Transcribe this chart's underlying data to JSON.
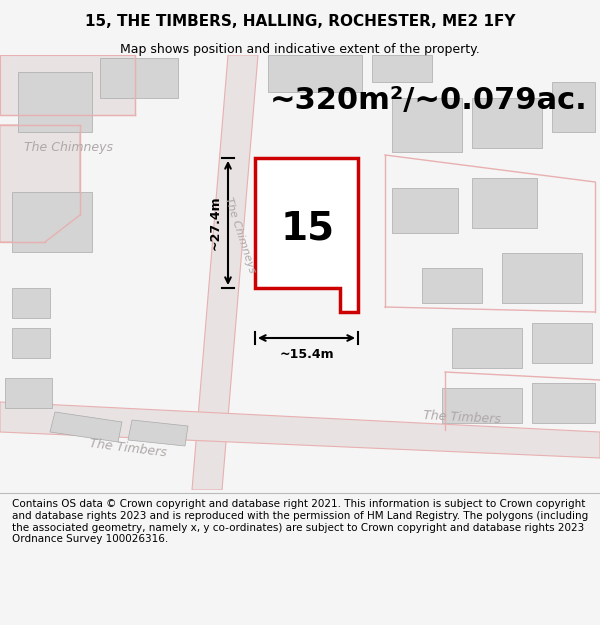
{
  "title": "15, THE TIMBERS, HALLING, ROCHESTER, ME2 1FY",
  "subtitle": "Map shows position and indicative extent of the property.",
  "area_text": "~320m²/~0.079ac.",
  "number_label": "15",
  "dim_width": "~15.4m",
  "dim_height": "~27.4m",
  "road_label_chimneys_main": "The Chimneys",
  "road_label_chimneys_ul": "The Chimneys",
  "road_label_timbers_br": "The Timbers",
  "road_label_timbers_bl": "The Timbers",
  "footer": "Contains OS data © Crown copyright and database right 2021. This information is subject to Crown copyright and database rights 2023 and is reproduced with the permission of HM Land Registry. The polygons (including the associated geometry, namely x, y co-ordinates) are subject to Crown copyright and database rights 2023 Ordnance Survey 100026316.",
  "bg_color": "#f5f5f5",
  "map_bg": "#ede9e9",
  "plot_color": "#ffffff",
  "plot_edge_color": "#cc0000",
  "building_color": "#d4d4d4",
  "building_edge": "#aaaaaa",
  "road_outline_color": "#e8b0b0",
  "dim_line_color": "#111111",
  "footer_bg": "#ffffff",
  "title_fontsize": 11,
  "subtitle_fontsize": 9,
  "area_fontsize": 22,
  "number_fontsize": 28,
  "footer_fontsize": 7.5,
  "road_label_color": "#b0a8a8",
  "road_label_fontsize": 9
}
